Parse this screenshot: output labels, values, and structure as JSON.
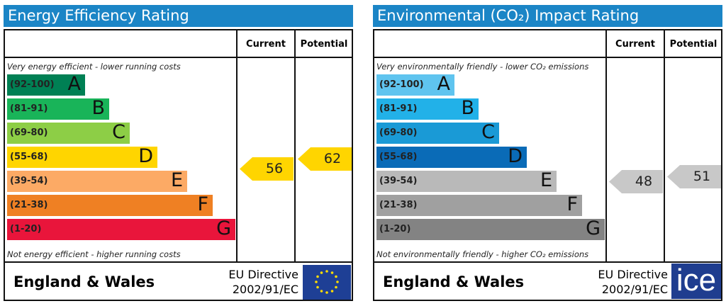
{
  "chart_data": [
    {
      "type": "bar",
      "title": "Energy Efficiency Rating",
      "columns": [
        "Current",
        "Potential"
      ],
      "top_note": "Very energy efficient - lower running costs",
      "bottom_note": "Not energy efficient - higher running costs",
      "bands": [
        {
          "range": "(92-100)",
          "letter": "A",
          "color": "#008054"
        },
        {
          "range": "(81-91)",
          "letter": "B",
          "color": "#19b459"
        },
        {
          "range": "(69-80)",
          "letter": "C",
          "color": "#8dce46"
        },
        {
          "range": "(55-68)",
          "letter": "D",
          "color": "#ffd500"
        },
        {
          "range": "(39-54)",
          "letter": "E",
          "color": "#fcaa65"
        },
        {
          "range": "(21-38)",
          "letter": "F",
          "color": "#ef8023"
        },
        {
          "range": "(1-20)",
          "letter": "G",
          "color": "#e9153b"
        }
      ],
      "current": 56,
      "potential": 62,
      "current_color": "#ffd500",
      "potential_color": "#ffd500",
      "footer": "England & Wales",
      "directive": [
        "EU Directive",
        "2002/91/EC"
      ]
    },
    {
      "type": "bar",
      "title": "Environmental (CO₂) Impact Rating",
      "columns": [
        "Current",
        "Potential"
      ],
      "top_note": "Very environmentally friendly - lower CO₂ emissions",
      "bottom_note": "Not environmentally friendly - higher CO₂ emissions",
      "bands": [
        {
          "range": "(92-100)",
          "letter": "A",
          "color": "#5fc4ef"
        },
        {
          "range": "(81-91)",
          "letter": "B",
          "color": "#22b1e8"
        },
        {
          "range": "(69-80)",
          "letter": "C",
          "color": "#1a9ad6"
        },
        {
          "range": "(55-68)",
          "letter": "D",
          "color": "#0a6bb7"
        },
        {
          "range": "(39-54)",
          "letter": "E",
          "color": "#b9b9b9"
        },
        {
          "range": "(21-38)",
          "letter": "F",
          "color": "#a0a0a0"
        },
        {
          "range": "(1-20)",
          "letter": "G",
          "color": "#838383"
        }
      ],
      "current": 48,
      "potential": 51,
      "current_color": "#c8c8c8",
      "potential_color": "#c8c8c8",
      "footer": "England & Wales",
      "directive": [
        "EU Directive",
        "2002/91/EC"
      ]
    }
  ],
  "watermark": "ice"
}
